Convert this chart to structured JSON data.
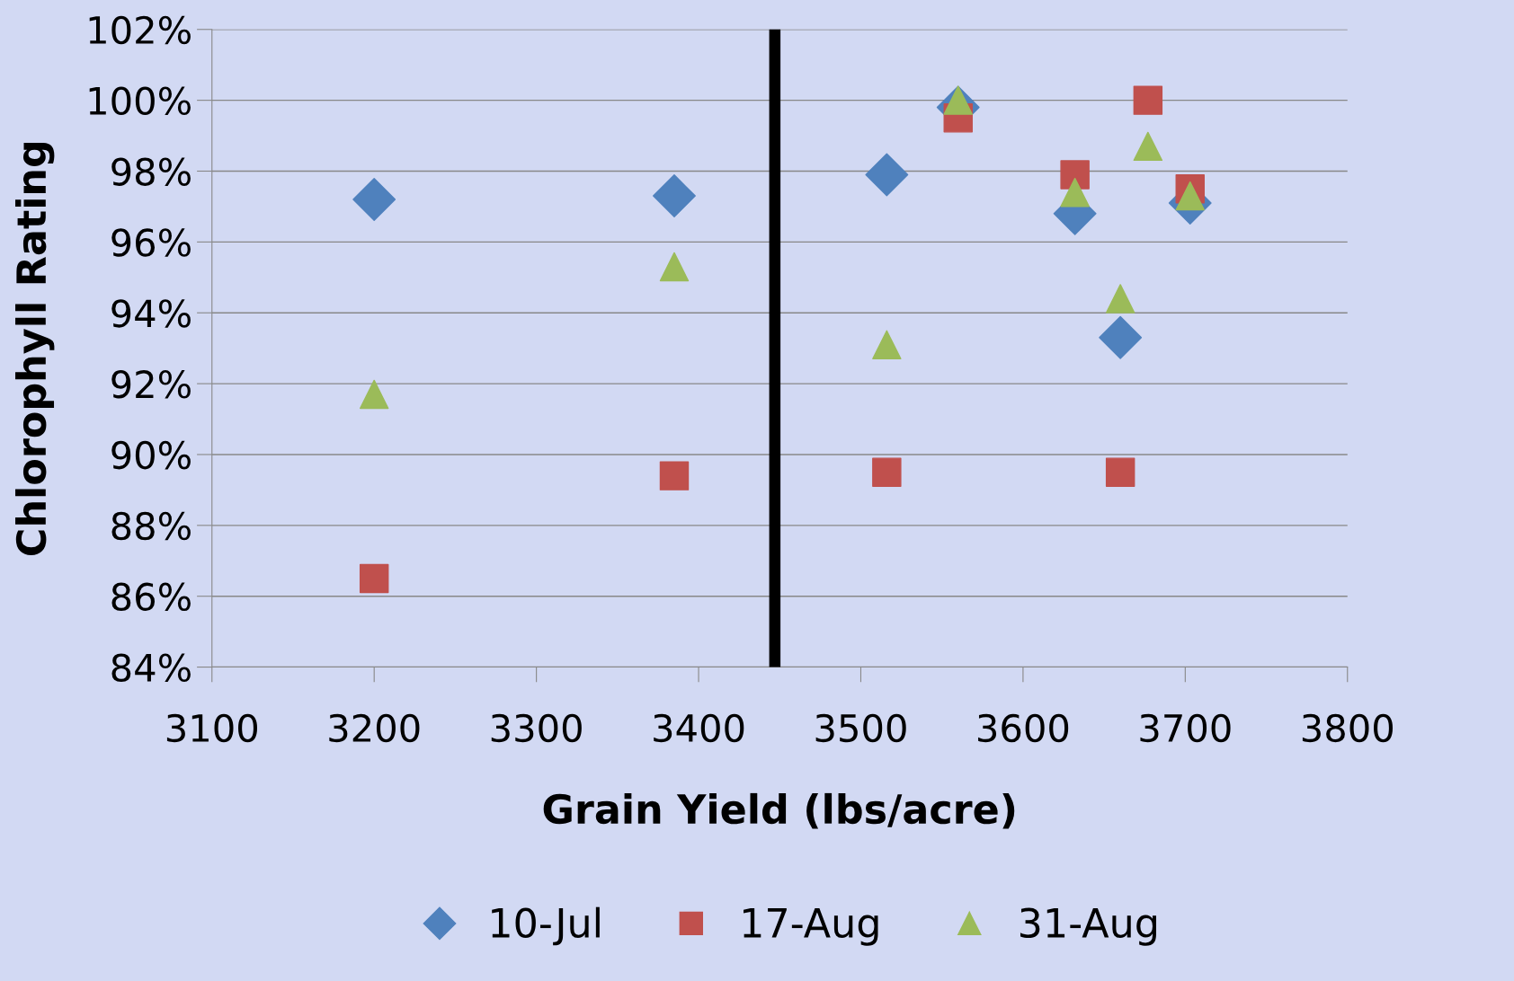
{
  "chart_data": {
    "type": "scatter",
    "xlabel": "Grain Yield (lbs/acre)",
    "ylabel": "Chlorophyll Rating",
    "xlim": [
      3100,
      3800
    ],
    "xticks": [
      3100,
      3200,
      3300,
      3400,
      3500,
      3600,
      3700,
      3800
    ],
    "ylim": [
      84,
      102
    ],
    "yticks": [
      {
        "value": 84,
        "label": "84%"
      },
      {
        "value": 86,
        "label": "86%"
      },
      {
        "value": 88,
        "label": "88%"
      },
      {
        "value": 90,
        "label": "90%"
      },
      {
        "value": 92,
        "label": "92%"
      },
      {
        "value": 94,
        "label": "94%"
      },
      {
        "value": 96,
        "label": "96%"
      },
      {
        "value": 98,
        "label": "98%"
      },
      {
        "value": 100,
        "label": "100%"
      },
      {
        "value": 102,
        "label": "102%"
      }
    ],
    "grid": "y",
    "legend": "bottom",
    "ref_lines": [
      {
        "axis": "x",
        "value": 3447,
        "color": "#000000"
      }
    ],
    "series": [
      {
        "name": "10-Jul",
        "color": "#4f81bd",
        "marker": "diamond",
        "x": [
          3200,
          3385,
          3516,
          3560,
          3632,
          3660,
          3703
        ],
        "values": [
          97.2,
          97.3,
          97.9,
          99.8,
          96.8,
          93.3,
          97.1
        ]
      },
      {
        "name": "17-Aug",
        "color": "#c0504d",
        "marker": "square",
        "x": [
          3200,
          3385,
          3516,
          3560,
          3632,
          3660,
          3677,
          3703
        ],
        "values": [
          86.5,
          89.4,
          89.5,
          99.5,
          97.9,
          89.5,
          100,
          97.5
        ]
      },
      {
        "name": "31-Aug",
        "color": "#9bbb59",
        "marker": "triangle",
        "x": [
          3200,
          3385,
          3516,
          3560,
          3632,
          3660,
          3677,
          3703
        ],
        "values": [
          91.7,
          95.3,
          93.1,
          100,
          97.4,
          94.4,
          98.7,
          97.3
        ]
      }
    ]
  }
}
